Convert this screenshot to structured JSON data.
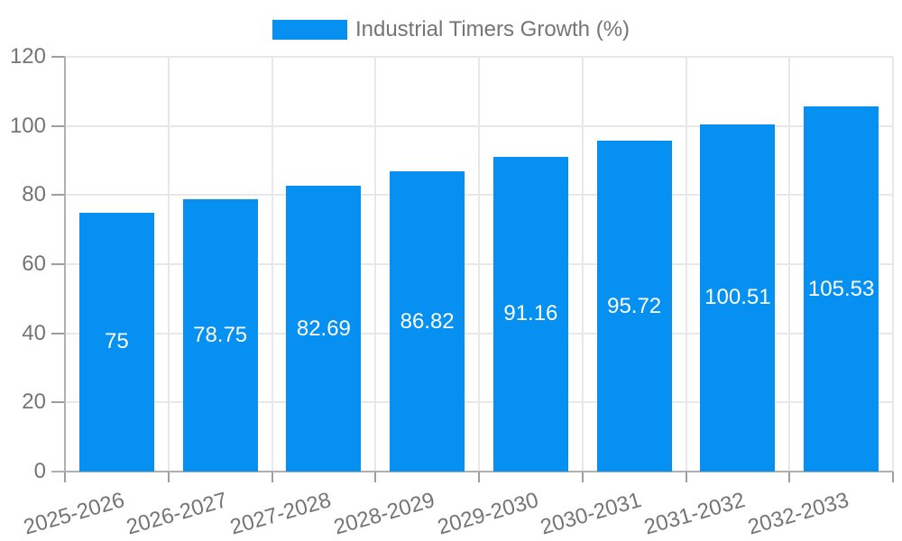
{
  "chart_data": {
    "type": "bar",
    "title": "Industrial Timers Growth (%)",
    "legend": {
      "label": "Industrial Timers Growth (%)",
      "position": "top-center",
      "swatch_color": "#0690F2"
    },
    "categories": [
      "2025-2026",
      "2026-2027",
      "2027-2028",
      "2028-2029",
      "2029-2030",
      "2030-2031",
      "2031-2032",
      "2032-2033"
    ],
    "series": [
      {
        "name": "Industrial Timers Growth (%)",
        "values": [
          75,
          78.75,
          82.69,
          86.82,
          91.16,
          95.72,
          100.51,
          105.53
        ],
        "value_labels": [
          "75",
          "78.75",
          "82.69",
          "86.82",
          "91.16",
          "95.72",
          "100.51",
          "105.53"
        ],
        "color": "#0690F2"
      }
    ],
    "xlabel": "",
    "ylabel": "",
    "ylim": [
      0,
      120
    ],
    "yticks": [
      0,
      20,
      40,
      60,
      80,
      100,
      120
    ],
    "grid": true,
    "x_label_rotation_deg": -16,
    "value_label_position": "center-inside",
    "colors": {
      "bar": "#0690F2",
      "axis_text": "#757575",
      "value_label_text": "#ffffff",
      "gridline": "#e8e8e8",
      "axis_line": "#b0b0b0",
      "tick_mark": "#9e9e9e",
      "background": "#ffffff"
    }
  }
}
